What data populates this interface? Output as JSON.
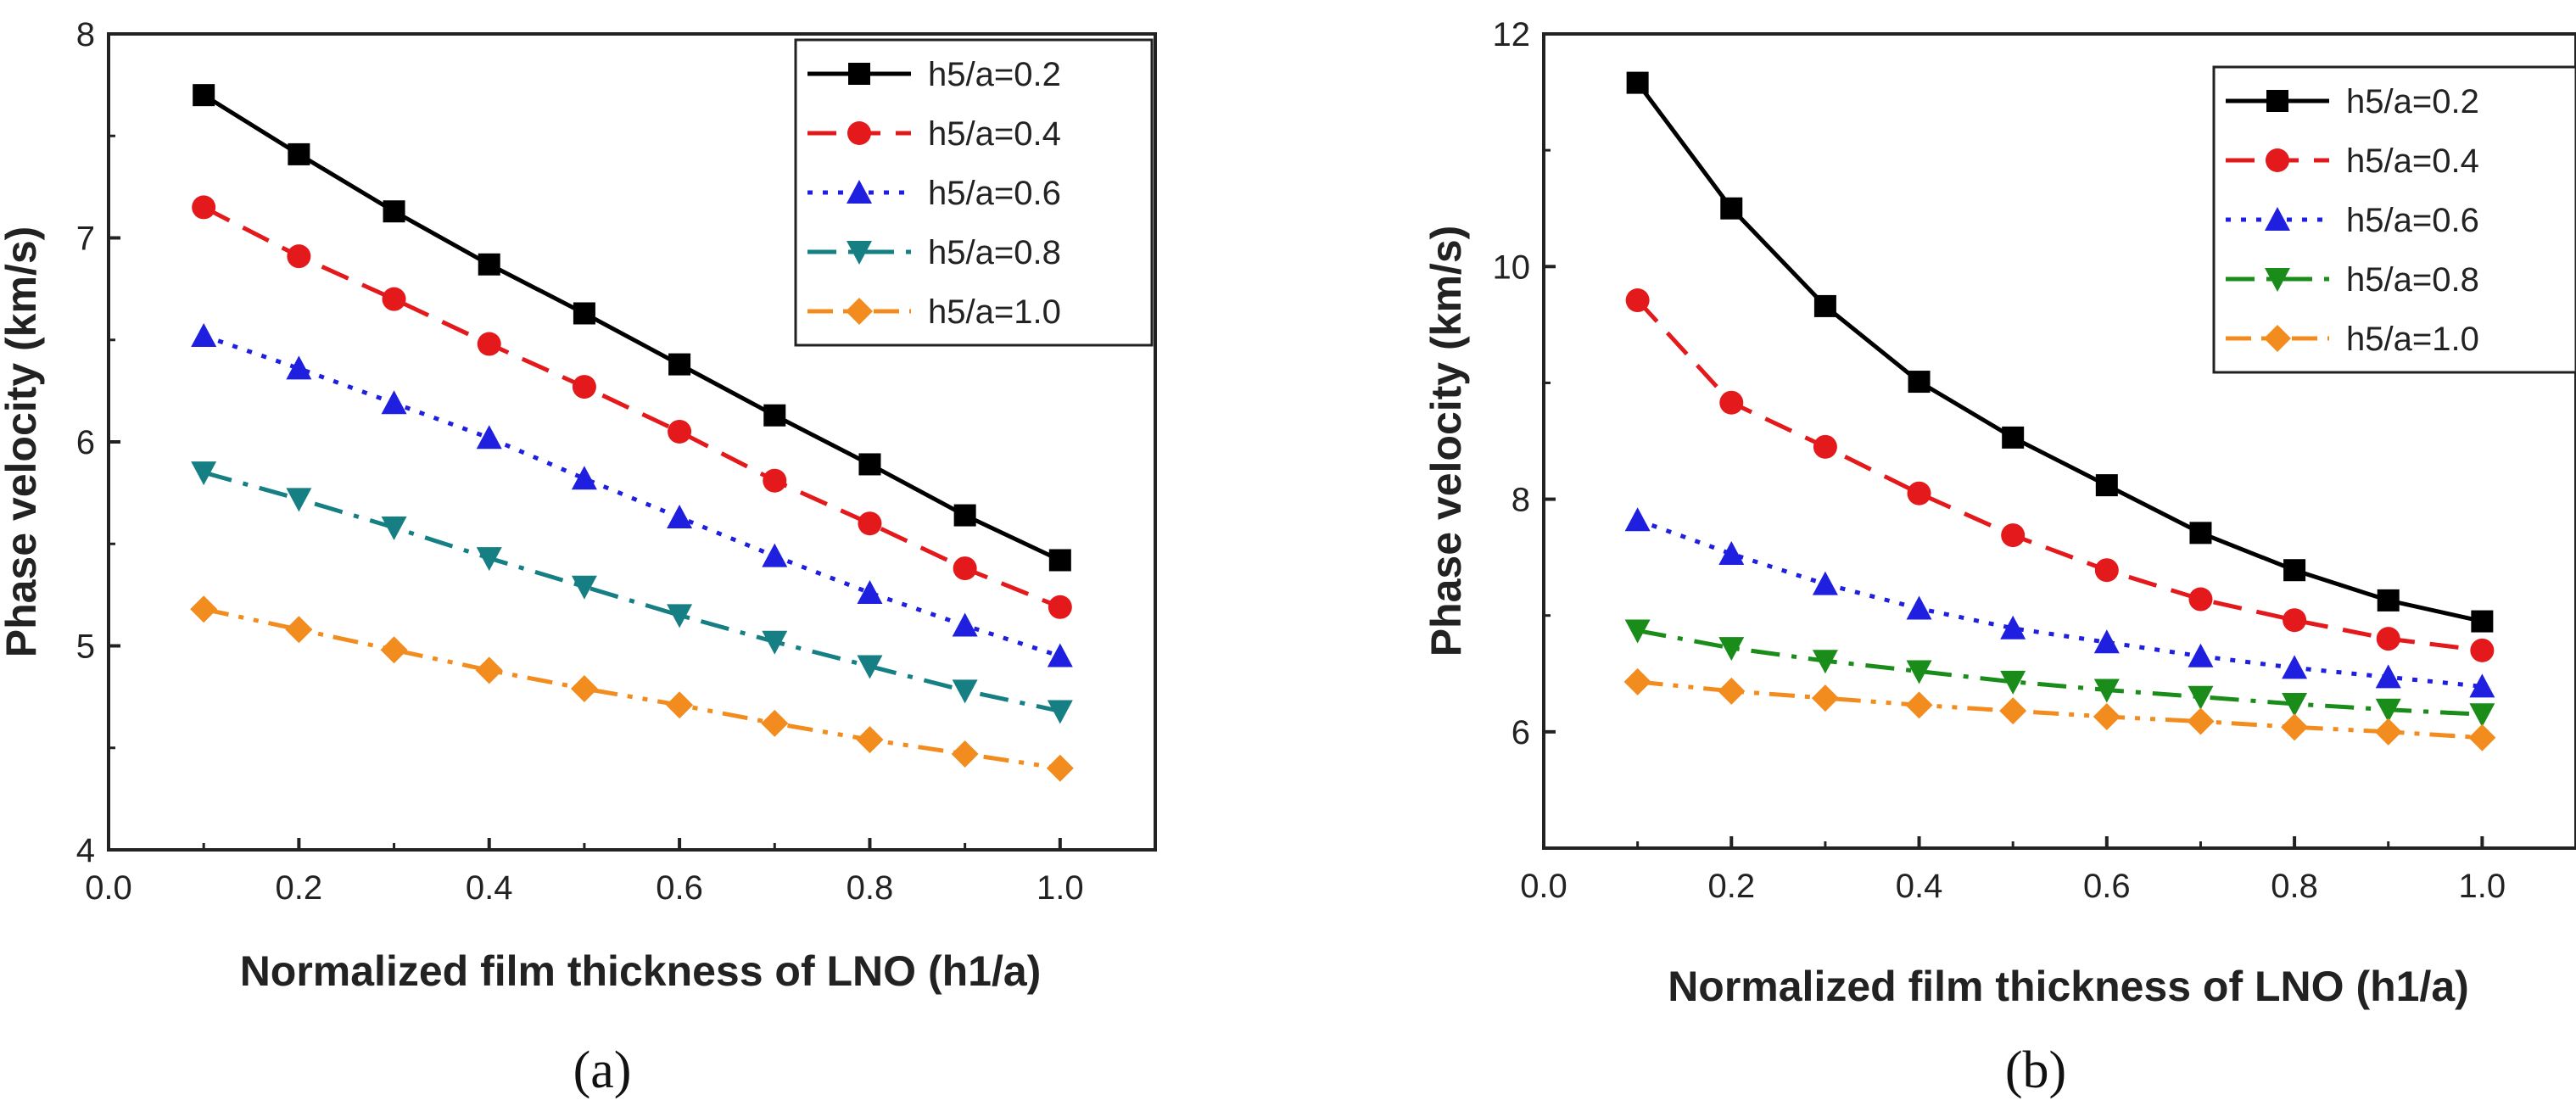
{
  "chart_data": [
    {
      "type": "line",
      "caption": "(a)",
      "xlabel": "Normalized film thickness of LNO (h1/a)",
      "ylabel": "Phase velocity (km/s)",
      "xlim": [
        0.0,
        1.1
      ],
      "ylim": [
        4,
        8
      ],
      "xticks": [
        "0.0",
        "0.2",
        "0.4",
        "0.6",
        "0.8",
        "1.0"
      ],
      "yticks": [
        "4",
        "5",
        "6",
        "7",
        "8"
      ],
      "legend_position": "top-right",
      "x": [
        0.1,
        0.2,
        0.3,
        0.4,
        0.5,
        0.6,
        0.7,
        0.8,
        0.9,
        1.0
      ],
      "series": [
        {
          "name": "h5/a=0.2",
          "color": "#000000",
          "marker": "square",
          "dash": "solid",
          "values": [
            7.7,
            7.41,
            7.13,
            6.87,
            6.63,
            6.38,
            6.13,
            5.89,
            5.64,
            5.42
          ]
        },
        {
          "name": "h5/a=0.4",
          "color": "#e3191c",
          "marker": "circle",
          "dash": "dash",
          "values": [
            7.15,
            6.91,
            6.7,
            6.48,
            6.27,
            6.05,
            5.81,
            5.6,
            5.38,
            5.19
          ]
        },
        {
          "name": "h5/a=0.6",
          "color": "#1f1fe0",
          "marker": "triangle-up",
          "dash": "dot",
          "values": [
            6.52,
            6.36,
            6.19,
            6.02,
            5.82,
            5.63,
            5.44,
            5.26,
            5.1,
            4.95
          ]
        },
        {
          "name": "h5/a=0.8",
          "color": "#157f84",
          "marker": "triangle-down",
          "dash": "dashdot",
          "values": [
            5.85,
            5.72,
            5.58,
            5.43,
            5.29,
            5.15,
            5.02,
            4.9,
            4.78,
            4.68
          ]
        },
        {
          "name": "h5/a=1.0",
          "color": "#f28c1e",
          "marker": "diamond",
          "dash": "dashdotdot",
          "values": [
            5.18,
            5.08,
            4.98,
            4.88,
            4.79,
            4.71,
            4.62,
            4.54,
            4.47,
            4.4
          ]
        }
      ]
    },
    {
      "type": "line",
      "caption": "(b)",
      "xlabel": "Normalized film thickness of LNO (h1/a)",
      "ylabel": "Phase velocity (km/s)",
      "xlim": [
        0.0,
        1.1
      ],
      "ylim": [
        5,
        12
      ],
      "xticks": [
        "0.0",
        "0.2",
        "0.4",
        "0.6",
        "0.8",
        "1.0"
      ],
      "yticks": [
        "6",
        "8",
        "10",
        "12"
      ],
      "legend_position": "top-right",
      "x": [
        0.1,
        0.2,
        0.3,
        0.4,
        0.5,
        0.6,
        0.7,
        0.8,
        0.9,
        1.0
      ],
      "series": [
        {
          "name": "h5/a=0.2",
          "color": "#000000",
          "marker": "square",
          "dash": "solid",
          "values": [
            11.58,
            10.5,
            9.66,
            9.01,
            8.53,
            8.12,
            7.71,
            7.39,
            7.13,
            6.95
          ]
        },
        {
          "name": "h5/a=0.4",
          "color": "#e3191c",
          "marker": "circle",
          "dash": "dash",
          "values": [
            9.71,
            8.83,
            8.45,
            8.05,
            7.69,
            7.39,
            7.14,
            6.96,
            6.8,
            6.7
          ]
        },
        {
          "name": "h5/a=0.6",
          "color": "#1f1fe0",
          "marker": "triangle-up",
          "dash": "dot",
          "values": [
            7.82,
            7.53,
            7.27,
            7.06,
            6.89,
            6.77,
            6.65,
            6.55,
            6.47,
            6.39
          ]
        },
        {
          "name": "h5/a=0.8",
          "color": "#198c19",
          "marker": "triangle-down",
          "dash": "dashdot",
          "values": [
            6.87,
            6.72,
            6.61,
            6.52,
            6.43,
            6.36,
            6.3,
            6.24,
            6.19,
            6.15
          ]
        },
        {
          "name": "h5/a=1.0",
          "color": "#f28c1e",
          "marker": "diamond",
          "dash": "dashdotdot",
          "values": [
            6.43,
            6.35,
            6.29,
            6.23,
            6.18,
            6.13,
            6.09,
            6.04,
            6.0,
            5.95
          ]
        }
      ]
    }
  ]
}
